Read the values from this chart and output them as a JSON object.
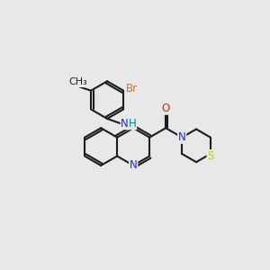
{
  "background_color": "#e8e8e8",
  "bond_color": "#1c1c1c",
  "atom_colors": {
    "N": "#2222ee",
    "O": "#ff1100",
    "S": "#cccc00",
    "Br": "#cc7722",
    "H": "#008888",
    "C": "#1c1c1c"
  },
  "figsize": [
    3.0,
    3.0
  ],
  "dpi": 100
}
